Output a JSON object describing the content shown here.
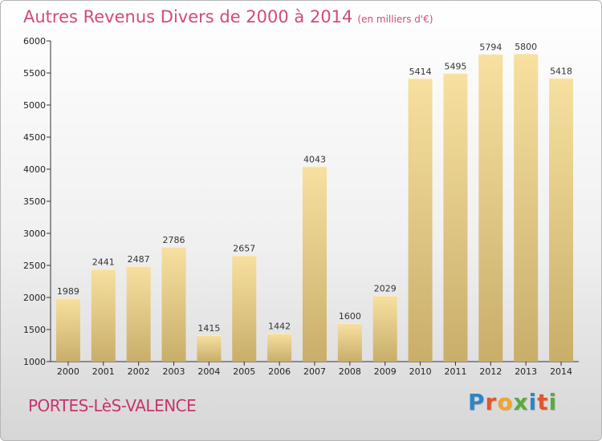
{
  "header": {
    "title": "Autres Revenus Divers de 2000 à 2014",
    "unit": "(en milliers d'€)"
  },
  "footer": {
    "place": "PORTES-LèS-VALENCE",
    "logo": "Proxiti"
  },
  "colors": {
    "bar_top": "#f7e0a0",
    "bar_bottom": "#c9ae6a",
    "title": "#d4497a",
    "place": "#c8336e",
    "logo_letters": [
      "#2f84c6",
      "#e2562f",
      "#f0a52b",
      "#5aab3c",
      "#2f84c6",
      "#e2562f",
      "#5aab3c"
    ]
  },
  "chart_data": {
    "type": "bar",
    "title": "Autres Revenus Divers de 2000 à 2014",
    "ylabel": "(en milliers d'€)",
    "categories": [
      "2000",
      "2001",
      "2002",
      "2003",
      "2004",
      "2005",
      "2006",
      "2007",
      "2008",
      "2009",
      "2010",
      "2011",
      "2012",
      "2013",
      "2014"
    ],
    "values": [
      1989,
      2441,
      2487,
      2786,
      1415,
      2657,
      1442,
      4043,
      1600,
      2029,
      5414,
      5495,
      5794,
      5800,
      5418
    ],
    "ylim": [
      1000,
      6000
    ],
    "yticks": [
      1000,
      1500,
      2000,
      2500,
      3000,
      3500,
      4000,
      4500,
      5000,
      5500,
      6000
    ],
    "grid": false,
    "data_labels": true
  }
}
